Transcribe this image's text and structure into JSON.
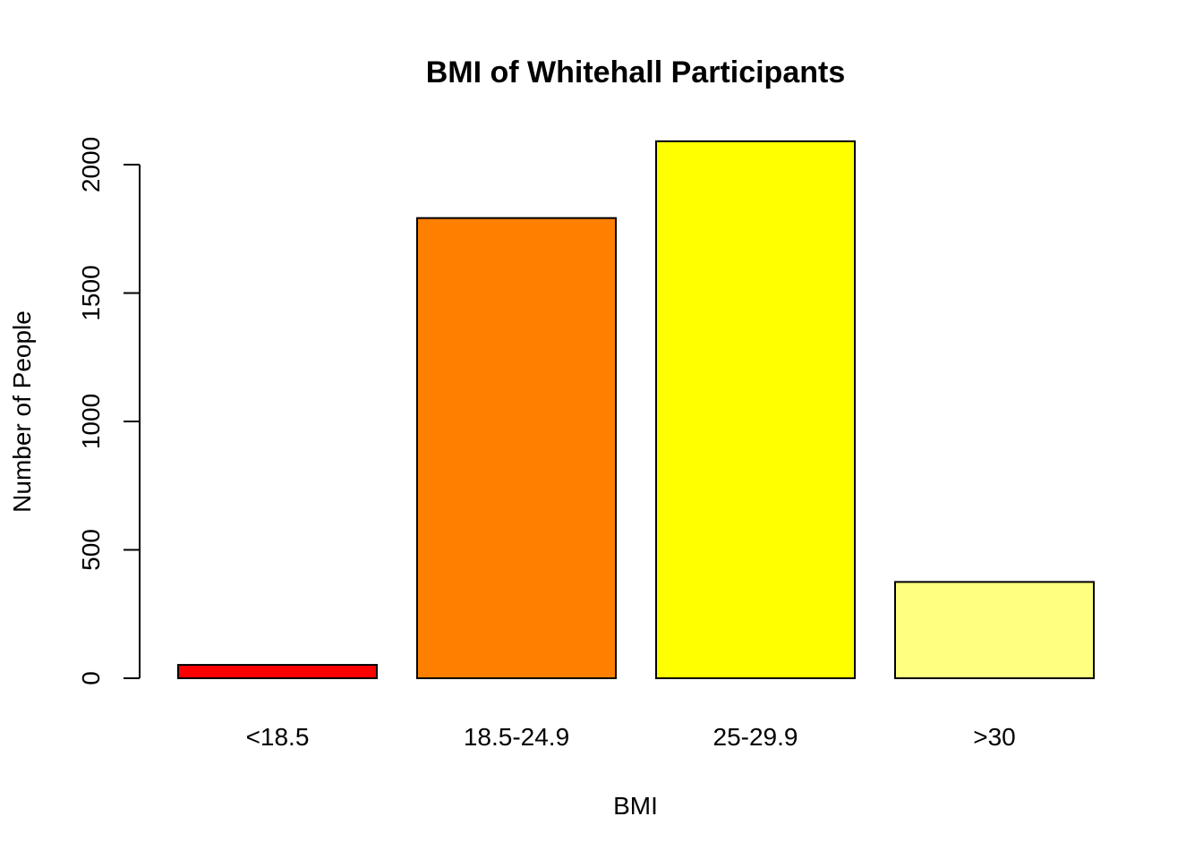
{
  "chart_data": {
    "type": "bar",
    "title": "BMI of Whitehall Participants",
    "xlabel": "BMI",
    "ylabel": "Number of People",
    "categories": [
      "<18.5",
      "18.5-24.9",
      "25-29.9",
      ">30"
    ],
    "values": [
      52,
      1792,
      2091,
      375
    ],
    "colors": [
      "#FF0000",
      "#FF8000",
      "#FFFF00",
      "#FFFF80"
    ],
    "ylim": [
      0,
      2100
    ],
    "yticks": [
      0,
      500,
      1000,
      1500,
      2000
    ],
    "ytick_labels": [
      "0",
      "500",
      "1000",
      "1500",
      "2000"
    ],
    "grid": false,
    "legend": "none"
  }
}
